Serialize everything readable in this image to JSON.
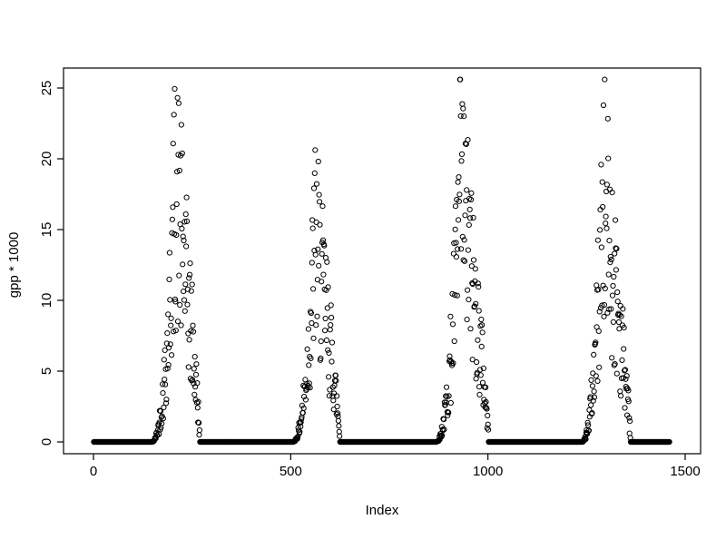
{
  "chart_data": {
    "type": "scatter",
    "title": "",
    "xlabel": "Index",
    "ylabel": "gpp * 1000",
    "xlim": [
      0,
      1500
    ],
    "ylim": [
      0,
      25
    ],
    "x_ticks": [
      0,
      500,
      1000,
      1500
    ],
    "y_ticks": [
      0,
      5,
      10,
      15,
      20,
      25
    ],
    "n_points": 1460,
    "baseline_value": 0,
    "marker": "open-circle",
    "marker_color": "#000000",
    "background": "#ffffff",
    "grid": false,
    "legend_position": "none",
    "seed": 42,
    "description": "Seasonal GPP time series: four peak clusters separated by long runs of zero values along the baseline",
    "seasons": [
      {
        "start": 148,
        "peak": 208,
        "end": 270,
        "max": 25.5
      },
      {
        "start": 505,
        "peak": 562,
        "end": 625,
        "max": 20.3
      },
      {
        "start": 868,
        "peak": 930,
        "end": 1002,
        "max": 25.5
      },
      {
        "start": 1238,
        "peak": 1292,
        "end": 1362,
        "max": 24.5
      }
    ],
    "noise": {
      "mult_min": 0.3,
      "mult_max": 1.1,
      "rise_exp": 2.2,
      "fall_exp": 0.8
    }
  }
}
